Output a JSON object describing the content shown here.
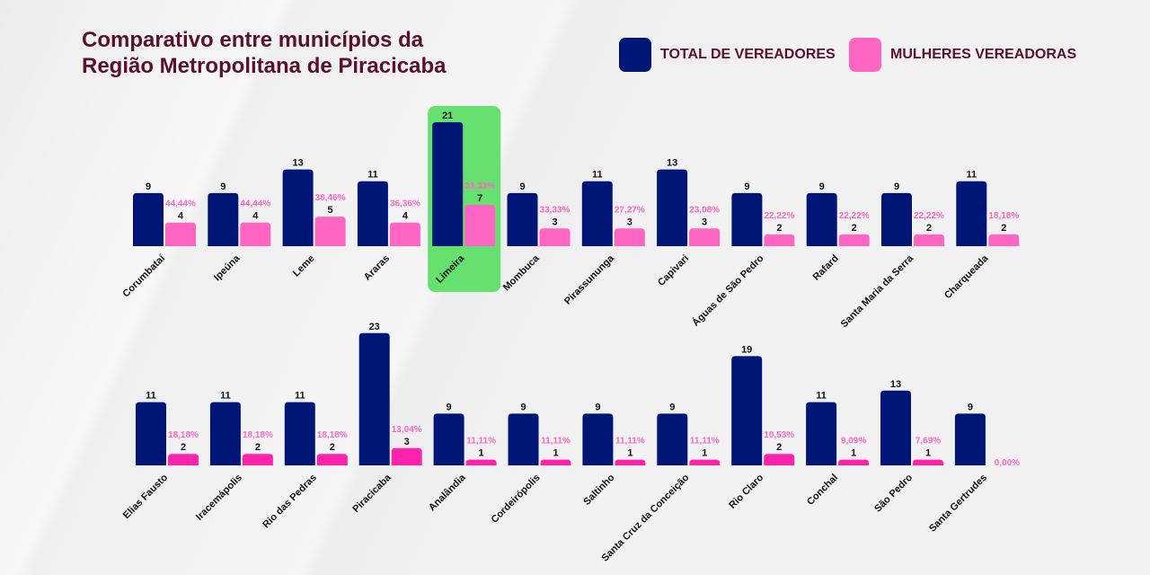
{
  "title_line1": "Comparativo entre municípios da",
  "title_line2": "Região Metropolitana de Piracicaba",
  "legend": [
    {
      "label": "TOTAL DE VEREADORES",
      "color": "#001677"
    },
    {
      "label": "MULHERES VEREADORAS",
      "color": "#ff66c4"
    }
  ],
  "highlight_color": "#66e06e",
  "chart_data": [
    {
      "type": "bar",
      "highlight": "Limeira",
      "women_color": "#ff66c4",
      "categories": [
        "Corumbataí",
        "Ipeúna",
        "Leme",
        "Araras",
        "Limeira",
        "Mombuca",
        "Pirassununga",
        "Capivari",
        "Águas de São Pedro",
        "Rafard",
        "Santa Maria da Serra",
        "Charqueada"
      ],
      "series": [
        {
          "name": "TOTAL DE VEREADORES",
          "values": [
            9,
            9,
            13,
            11,
            21,
            9,
            11,
            13,
            9,
            9,
            9,
            11
          ]
        },
        {
          "name": "MULHERES VEREADORAS",
          "values": [
            4,
            4,
            5,
            4,
            7,
            3,
            3,
            3,
            2,
            2,
            2,
            2
          ]
        }
      ],
      "percent_labels": [
        "44,44%",
        "44,44%",
        "38,46%",
        "36,36%",
        "33,33%",
        "33,33%",
        "27,27%",
        "23,08%",
        "22,22%",
        "22,22%",
        "22,22%",
        "18,18%"
      ]
    },
    {
      "type": "bar",
      "women_color": "#ff22aa",
      "categories": [
        "Elias Fausto",
        "Iracemápolis",
        "Rio das Pedras",
        "Piracicaba",
        "Analândia",
        "Cordeirópolis",
        "Saltinho",
        "Santa Cruz da Conceição",
        "Rio Claro",
        "Conchal",
        "São Pedro",
        "Santa Gertrudes"
      ],
      "series": [
        {
          "name": "TOTAL DE VEREADORES",
          "values": [
            11,
            11,
            11,
            23,
            9,
            9,
            9,
            9,
            19,
            11,
            13,
            9
          ]
        },
        {
          "name": "MULHERES VEREADORAS",
          "values": [
            2,
            2,
            2,
            3,
            1,
            1,
            1,
            1,
            2,
            1,
            1,
            0
          ]
        }
      ],
      "percent_labels": [
        "18,18%",
        "18,18%",
        "18,18%",
        "13,04%",
        "11,11%",
        "11,11%",
        "11,11%",
        "11,11%",
        "10,53%",
        "9,09%",
        "7,69%",
        "0,00%"
      ]
    }
  ]
}
